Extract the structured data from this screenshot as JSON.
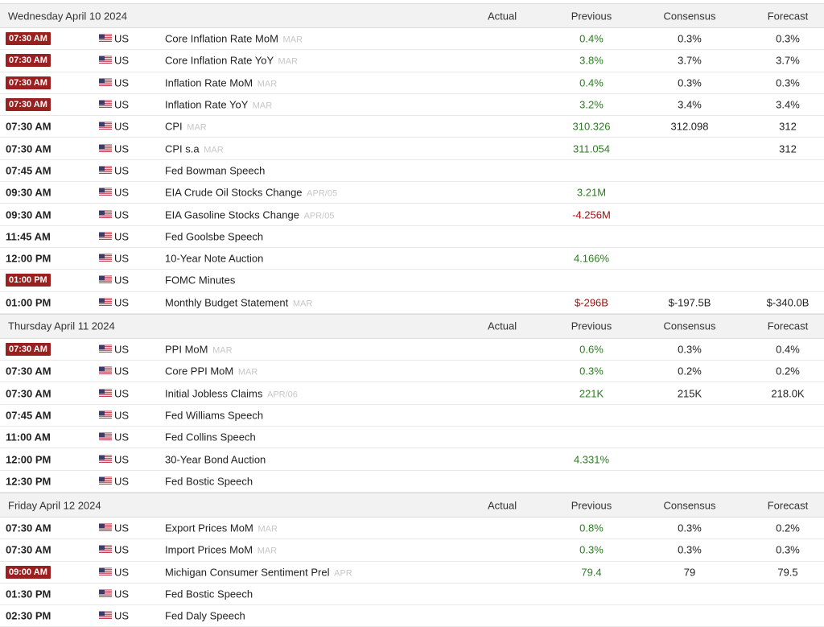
{
  "columns": {
    "actual": "Actual",
    "previous": "Previous",
    "consensus": "Consensus",
    "forecast": "Forecast"
  },
  "colors": {
    "badge": "#9a1f1f",
    "positive": "#2a7d1f",
    "negative": "#a01010"
  },
  "days": [
    {
      "date": "Wednesday April 10 2024",
      "events": [
        {
          "time": "07:30 AM",
          "highlight": true,
          "country": "US",
          "event": "Core Inflation Rate MoM",
          "ref": "MAR",
          "actual": "",
          "previous": "0.4%",
          "previous_color": "pos",
          "consensus": "0.3%",
          "forecast": "0.3%"
        },
        {
          "time": "07:30 AM",
          "highlight": true,
          "country": "US",
          "event": "Core Inflation Rate YoY",
          "ref": "MAR",
          "actual": "",
          "previous": "3.8%",
          "previous_color": "pos",
          "consensus": "3.7%",
          "forecast": "3.7%"
        },
        {
          "time": "07:30 AM",
          "highlight": true,
          "country": "US",
          "event": "Inflation Rate MoM",
          "ref": "MAR",
          "actual": "",
          "previous": "0.4%",
          "previous_color": "pos",
          "consensus": "0.3%",
          "forecast": "0.3%"
        },
        {
          "time": "07:30 AM",
          "highlight": true,
          "country": "US",
          "event": "Inflation Rate YoY",
          "ref": "MAR",
          "actual": "",
          "previous": "3.2%",
          "previous_color": "pos",
          "consensus": "3.4%",
          "forecast": "3.4%"
        },
        {
          "time": "07:30 AM",
          "highlight": false,
          "country": "US",
          "event": "CPI",
          "ref": "MAR",
          "actual": "",
          "previous": "310.326",
          "previous_color": "pos",
          "consensus": "312.098",
          "forecast": "312"
        },
        {
          "time": "07:30 AM",
          "highlight": false,
          "country": "US",
          "event": "CPI s.a",
          "ref": "MAR",
          "actual": "",
          "previous": "311.054",
          "previous_color": "pos",
          "consensus": "",
          "forecast": "312"
        },
        {
          "time": "07:45 AM",
          "highlight": false,
          "country": "US",
          "event": "Fed Bowman Speech",
          "ref": "",
          "actual": "",
          "previous": "",
          "previous_color": "pos",
          "consensus": "",
          "forecast": ""
        },
        {
          "time": "09:30 AM",
          "highlight": false,
          "country": "US",
          "event": "EIA Crude Oil Stocks Change",
          "ref": "APR/05",
          "actual": "",
          "previous": "3.21M",
          "previous_color": "pos",
          "consensus": "",
          "forecast": ""
        },
        {
          "time": "09:30 AM",
          "highlight": false,
          "country": "US",
          "event": "EIA Gasoline Stocks Change",
          "ref": "APR/05",
          "actual": "",
          "previous": "-4.256M",
          "previous_color": "neg",
          "consensus": "",
          "forecast": ""
        },
        {
          "time": "11:45 AM",
          "highlight": false,
          "country": "US",
          "event": "Fed Goolsbe Speech",
          "ref": "",
          "actual": "",
          "previous": "",
          "previous_color": "pos",
          "consensus": "",
          "forecast": ""
        },
        {
          "time": "12:00 PM",
          "highlight": false,
          "country": "US",
          "event": "10-Year Note Auction",
          "ref": "",
          "actual": "",
          "previous": "4.166%",
          "previous_color": "pos",
          "consensus": "",
          "forecast": ""
        },
        {
          "time": "01:00 PM",
          "highlight": true,
          "country": "US",
          "event": "FOMC Minutes",
          "ref": "",
          "actual": "",
          "previous": "",
          "previous_color": "pos",
          "consensus": "",
          "forecast": ""
        },
        {
          "time": "01:00 PM",
          "highlight": false,
          "country": "US",
          "event": "Monthly Budget Statement",
          "ref": "MAR",
          "actual": "",
          "previous": "$-296B",
          "previous_color": "neg",
          "consensus": "$-197.5B",
          "forecast": "$-340.0B"
        }
      ]
    },
    {
      "date": "Thursday April 11 2024",
      "events": [
        {
          "time": "07:30 AM",
          "highlight": true,
          "country": "US",
          "event": "PPI MoM",
          "ref": "MAR",
          "actual": "",
          "previous": "0.6%",
          "previous_color": "pos",
          "consensus": "0.3%",
          "forecast": "0.4%"
        },
        {
          "time": "07:30 AM",
          "highlight": false,
          "country": "US",
          "event": "Core PPI MoM",
          "ref": "MAR",
          "actual": "",
          "previous": "0.3%",
          "previous_color": "pos",
          "consensus": "0.2%",
          "forecast": "0.2%"
        },
        {
          "time": "07:30 AM",
          "highlight": false,
          "country": "US",
          "event": "Initial Jobless Claims",
          "ref": "APR/06",
          "actual": "",
          "previous": "221K",
          "previous_color": "pos",
          "consensus": "215K",
          "forecast": "218.0K"
        },
        {
          "time": "07:45 AM",
          "highlight": false,
          "country": "US",
          "event": "Fed Williams Speech",
          "ref": "",
          "actual": "",
          "previous": "",
          "previous_color": "pos",
          "consensus": "",
          "forecast": ""
        },
        {
          "time": "11:00 AM",
          "highlight": false,
          "country": "US",
          "event": "Fed Collins Speech",
          "ref": "",
          "actual": "",
          "previous": "",
          "previous_color": "pos",
          "consensus": "",
          "forecast": ""
        },
        {
          "time": "12:00 PM",
          "highlight": false,
          "country": "US",
          "event": "30-Year Bond Auction",
          "ref": "",
          "actual": "",
          "previous": "4.331%",
          "previous_color": "pos",
          "consensus": "",
          "forecast": ""
        },
        {
          "time": "12:30 PM",
          "highlight": false,
          "country": "US",
          "event": "Fed Bostic Speech",
          "ref": "",
          "actual": "",
          "previous": "",
          "previous_color": "pos",
          "consensus": "",
          "forecast": ""
        }
      ]
    },
    {
      "date": "Friday April 12 2024",
      "events": [
        {
          "time": "07:30 AM",
          "highlight": false,
          "country": "US",
          "event": "Export Prices MoM",
          "ref": "MAR",
          "actual": "",
          "previous": "0.8%",
          "previous_color": "pos",
          "consensus": "0.3%",
          "forecast": "0.2%"
        },
        {
          "time": "07:30 AM",
          "highlight": false,
          "country": "US",
          "event": "Import Prices MoM",
          "ref": "MAR",
          "actual": "",
          "previous": "0.3%",
          "previous_color": "pos",
          "consensus": "0.3%",
          "forecast": "0.3%"
        },
        {
          "time": "09:00 AM",
          "highlight": true,
          "country": "US",
          "event": "Michigan Consumer Sentiment Prel",
          "ref": "APR",
          "actual": "",
          "previous": "79.4",
          "previous_color": "pos",
          "consensus": "79",
          "forecast": "79.5"
        },
        {
          "time": "01:30 PM",
          "highlight": false,
          "country": "US",
          "event": "Fed Bostic Speech",
          "ref": "",
          "actual": "",
          "previous": "",
          "previous_color": "pos",
          "consensus": "",
          "forecast": ""
        },
        {
          "time": "02:30 PM",
          "highlight": false,
          "country": "US",
          "event": "Fed Daly Speech",
          "ref": "",
          "actual": "",
          "previous": "",
          "previous_color": "pos",
          "consensus": "",
          "forecast": ""
        }
      ]
    }
  ]
}
